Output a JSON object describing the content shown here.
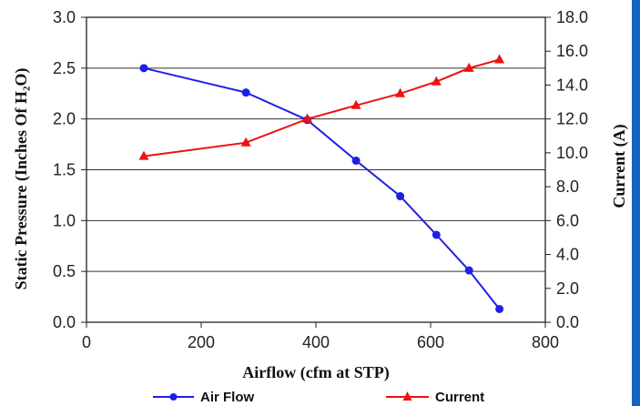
{
  "chart_data": {
    "type": "line",
    "xlabel": "Airflow (cfm at STP)",
    "ylabel_left": "Static Pressure (Inches Of H₂O)",
    "ylabel_right": "Current (A)",
    "xlim": [
      0,
      800
    ],
    "ylim_left": [
      0,
      3.0
    ],
    "ylim_right": [
      0,
      18.0
    ],
    "x_ticks": [
      "0",
      "200",
      "400",
      "600",
      "800"
    ],
    "y_left_ticks": [
      "0.0",
      "0.5",
      "1.0",
      "1.5",
      "2.0",
      "2.5",
      "3.0"
    ],
    "y_right_ticks": [
      "0.0",
      "2.0",
      "4.0",
      "6.0",
      "8.0",
      "10.0",
      "12.0",
      "14.0",
      "16.0",
      "18.0"
    ],
    "grid": "horizontal",
    "legend_position": "bottom",
    "series": [
      {
        "name": "Air Flow",
        "axis": "left",
        "color": "#1f1fe6",
        "marker": "circle",
        "x": [
          100,
          278,
          385,
          470,
          547,
          610,
          667,
          720
        ],
        "y": [
          2.5,
          2.26,
          1.99,
          1.59,
          1.24,
          0.86,
          0.51,
          0.13
        ]
      },
      {
        "name": "Current",
        "axis": "right",
        "color": "#ee1111",
        "marker": "triangle",
        "x": [
          100,
          278,
          385,
          470,
          547,
          610,
          667,
          720
        ],
        "y": [
          9.8,
          10.6,
          12.0,
          12.8,
          13.5,
          14.2,
          15.0,
          15.5
        ]
      }
    ]
  }
}
